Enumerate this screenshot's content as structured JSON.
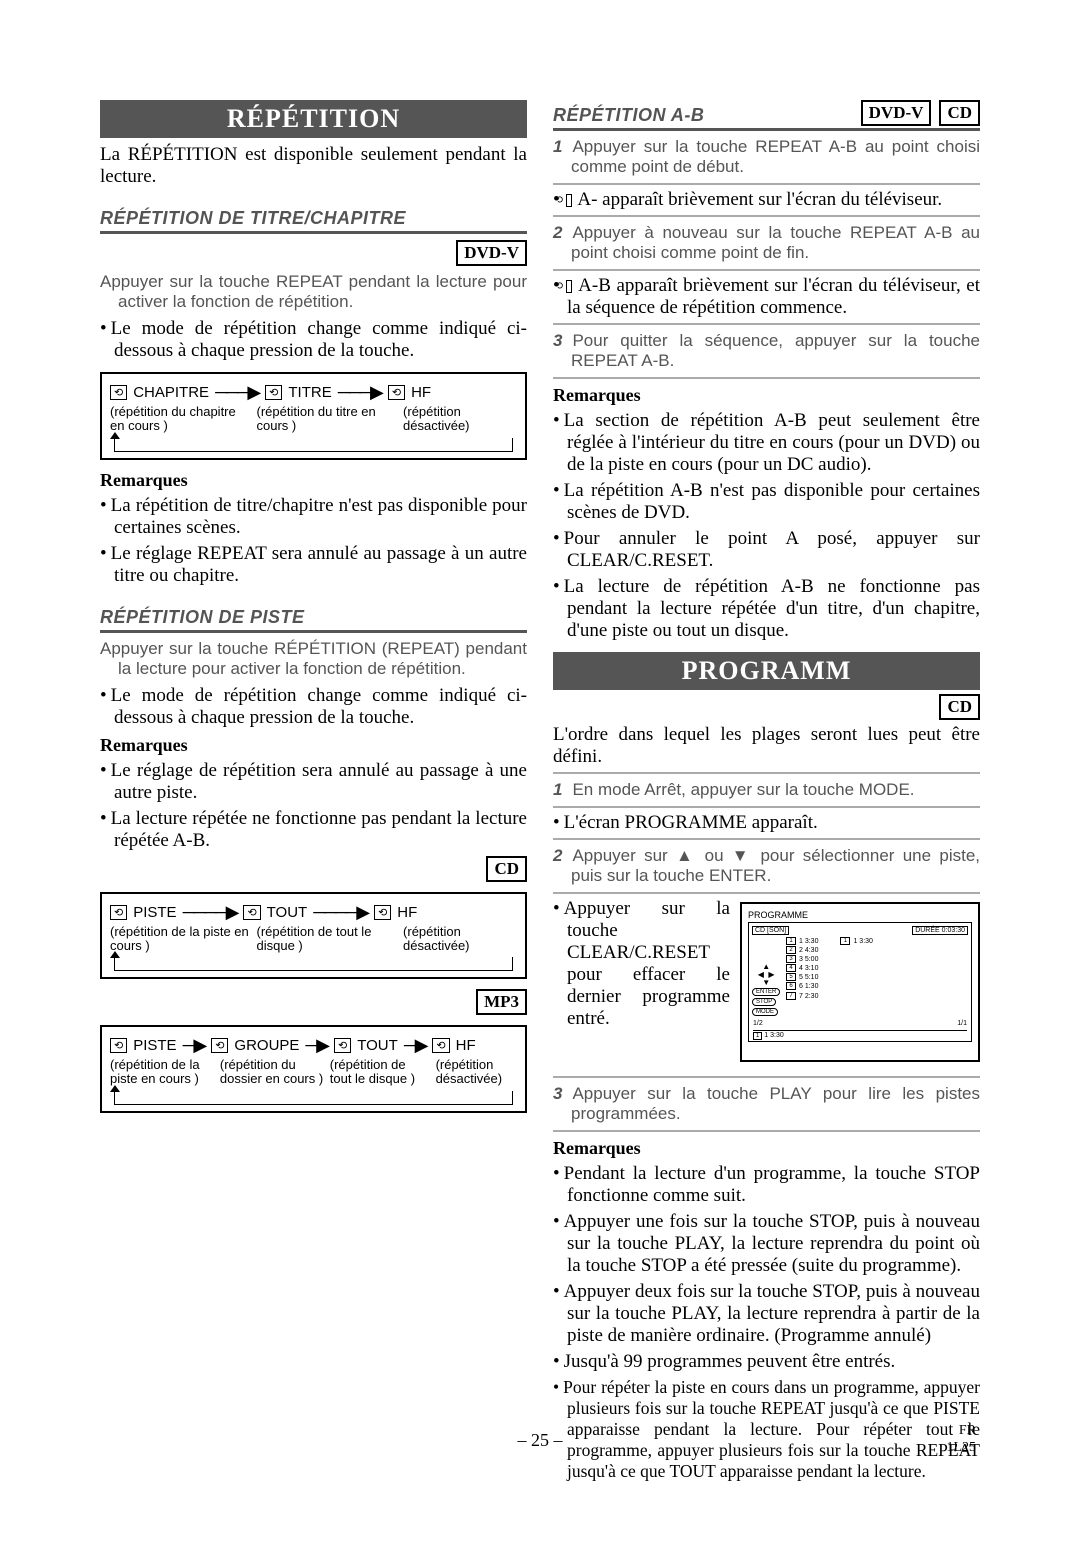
{
  "footer": {
    "page": "– 25 –",
    "lang": "FR",
    "rev": "1L25"
  },
  "left": {
    "band1": "RÉPÉTITION",
    "intro": "La RÉPÉTITION est disponible seulement pendant la lecture.",
    "sub1": "RÉPÉTITION DE TITRE/CHAPITRE",
    "media_dvdv": "DVD-V",
    "step1": "Appuyer sur la touche REPEAT pendant la lecture pour activer la fonction de répétition.",
    "bullet1": "Le mode de répétition change comme indiqué ci-dessous à chaque pression de la touche.",
    "diag1": {
      "a": "CHAPITRE",
      "b": "TITRE",
      "c": "HF",
      "sa": "(répétition du chapitre en cours )",
      "sb": "(répétition du titre en cours )",
      "sc": "(répétition désactivée)"
    },
    "remhead": "Remarques",
    "rem1a": "La répétition de titre/chapitre n'est pas disponible pour certaines scènes.",
    "rem1b": "Le réglage REPEAT sera annulé au passage à un autre titre ou chapitre.",
    "sub2": "RÉPÉTITION DE PISTE",
    "step2": "Appuyer sur la touche RÉPÉTITION (REPEAT) pendant la lecture pour activer la fonction de répétition.",
    "bullet2": "Le mode de répétition change comme indiqué ci-dessous à chaque pression de la touche.",
    "rem2a": "Le réglage de répétition sera annulé au passage à une autre piste.",
    "rem2b": "La lecture répétée ne fonctionne pas pendant la lecture répétée A-B.",
    "media_cd": "CD",
    "diag2": {
      "a": "PISTE",
      "b": "TOUT",
      "c": "HF",
      "sa": "(répétition de la piste en cours )",
      "sb": "(répétition de tout le disque )",
      "sc": "(répétition désactivée)"
    },
    "media_mp3": "MP3",
    "diag3": {
      "a": "PISTE",
      "b": "GROUPE",
      "c": "TOUT",
      "d": "HF",
      "sa": "(répétition de la piste en cours )",
      "sb": "(répétition du dossier en cours )",
      "sc": "(répétition de tout le disque )",
      "sd": "(répétition désactivée)"
    }
  },
  "right": {
    "sub1": "RÉPÉTITION A-B",
    "media_dvdv": "DVD-V",
    "media_cd": "CD",
    "s1": "Appuyer sur la touche REPEAT A-B au point choisi comme point de début.",
    "b1": "A- apparaît brièvement sur l'écran du téléviseur.",
    "s2": "Appuyer à nouveau sur la touche REPEAT A-B au point choisi comme point de fin.",
    "b2": "A-B apparaît brièvement sur l'écran du téléviseur, et la séquence de répétition commence.",
    "s3": "Pour quitter la séquence, appuyer sur la touche REPEAT A-B.",
    "remhead": "Remarques",
    "r1": "La section de répétition A-B peut seulement être réglée à l'intérieur du titre en cours (pour un DVD) ou de la piste en cours (pour un DC audio).",
    "r2": "La répétition A-B n'est pas disponible pour certaines scènes de DVD.",
    "r3": "Pour annuler le point A posé, appuyer sur CLEAR/C.RESET.",
    "r4": "La lecture de répétition A-B ne fonctionne pas pendant la lecture répétée d'un titre, d'un chapitre, d'une piste ou tout un disque.",
    "band2": "PROGRAMM",
    "intro2": "L'ordre dans lequel les plages seront lues peut être défini.",
    "ps1": "En mode Arrêt, appuyer sur la touche MODE.",
    "pb1": "L'écran PROGRAMME apparaît.",
    "ps2": "Appuyer sur ▲ ou ▼ pour sélectionner une piste, puis sur la touche ENTER.",
    "pb2": "Appuyer sur la touche CLEAR/C.RESET pour effacer le dernier programme entré.",
    "osd": {
      "title": "PROGRAMME",
      "cdson": "CD [SON]",
      "duree": "DURÉE  0:03:30",
      "tracks": [
        "1  3:30",
        "2  4:30",
        "3  5:00",
        "4  3:10",
        "5  5:10",
        "6  1:30",
        "7  2:30"
      ],
      "prog": "1   3:30",
      "page_l": "1/2",
      "page_r": "1/1",
      "pad": "▲\n◀  ▶\n▼",
      "btn1": "ENTER",
      "btn2": "STOP",
      "btn3": "MODE",
      "line": " 1   3:30"
    },
    "ps3": "Appuyer sur la touche PLAY pour lire les pistes programmées.",
    "pr1": "Pendant la lecture d'un programme, la touche STOP fonctionne comme suit.",
    "pr2": "Appuyer une fois sur la touche STOP, puis à nouveau sur la touche PLAY, la lecture reprendra du point où la touche STOP a été pressée (suite du programme).",
    "pr3": "Appuyer deux fois sur la touche STOP, puis à nouveau sur la touche PLAY, la lecture reprendra à partir de la piste de manière ordinaire. (Programme annulé)",
    "pr4": "Jusqu'à 99 programmes peuvent être entrés.",
    "pr5": "Pour répéter la piste en cours dans un programme, appuyer plusieurs fois sur la touche REPEAT jusqu'à ce que      PISTE apparaisse pendant la lecture. Pour répéter tout le programme, appuyer plusieurs fois sur la touche REPEAT jusqu'à ce que      TOUT apparaisse pendant la lecture."
  }
}
